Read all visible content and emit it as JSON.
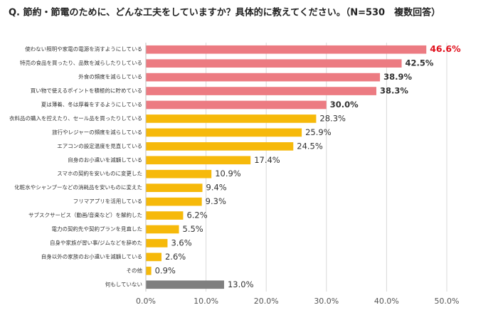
{
  "chart_data": {
    "type": "bar",
    "orientation": "horizontal",
    "title": "Q. 節約・節電のために、どんな工夫をしていますか？具体的に教えてください。（N=530　複数回答）",
    "categories": [
      "使わない照明や家電の電源を消すようにしている",
      "特売の食品を買ったり、品数を減らしたりしている",
      "外食の頻度を減らしている",
      "買い物で使えるポイントを積極的に貯めている",
      "夏は薄着、冬は厚着をするようにしている",
      "衣料品の購入を控えたり、セール品を買ったりしている",
      "旅行やレジャーの頻度を減らしている",
      "エアコンの設定温度を見直している",
      "自身のお小遣いを減額している",
      "スマホの契約を安いものに変更した",
      "化粧水やシャンプーなどの消耗品を安いものに変えた",
      "フリマアプリを活用している",
      "サブスクサービス（動画/音楽など）を解約した",
      "電力の契約先や契約プランを見直した",
      "自身や家族が習い事/ジムなどを辞めた",
      "自身以外の家族のお小遣いを減額している",
      "その他",
      "何もしていない"
    ],
    "values": [
      46.6,
      42.5,
      38.9,
      38.3,
      30.0,
      28.3,
      25.9,
      24.5,
      17.4,
      10.9,
      9.4,
      9.3,
      6.2,
      5.5,
      3.6,
      2.6,
      0.9,
      13.0
    ],
    "value_labels": [
      "46.6%",
      "42.5%",
      "38.9%",
      "38.3%",
      "30.0%",
      "28.3%",
      "25.9%",
      "24.5%",
      "17.4%",
      "10.9%",
      "9.4%",
      "9.3%",
      "6.2%",
      "5.5%",
      "3.6%",
      "2.6%",
      "0.9%",
      "13.0%"
    ],
    "colors": [
      "#ec7b82",
      "#ec7b82",
      "#ec7b82",
      "#ec7b82",
      "#ec7b82",
      "#f6b90a",
      "#f6b90a",
      "#f6b90a",
      "#f6b90a",
      "#f6b90a",
      "#f6b90a",
      "#f6b90a",
      "#f6b90a",
      "#f6b90a",
      "#f6b90a",
      "#f6b90a",
      "#f6b90a",
      "#7f7f7f"
    ],
    "xlim": [
      0,
      50
    ],
    "xticks": [
      {
        "value": 0,
        "label": "0.0%"
      },
      {
        "value": 10,
        "label": "10.0%"
      },
      {
        "value": 20,
        "label": "20.0%"
      },
      {
        "value": 30,
        "label": "30.0%"
      },
      {
        "value": 40,
        "label": "40.0%"
      },
      {
        "value": 50,
        "label": "50.0%"
      }
    ],
    "grid": true
  }
}
